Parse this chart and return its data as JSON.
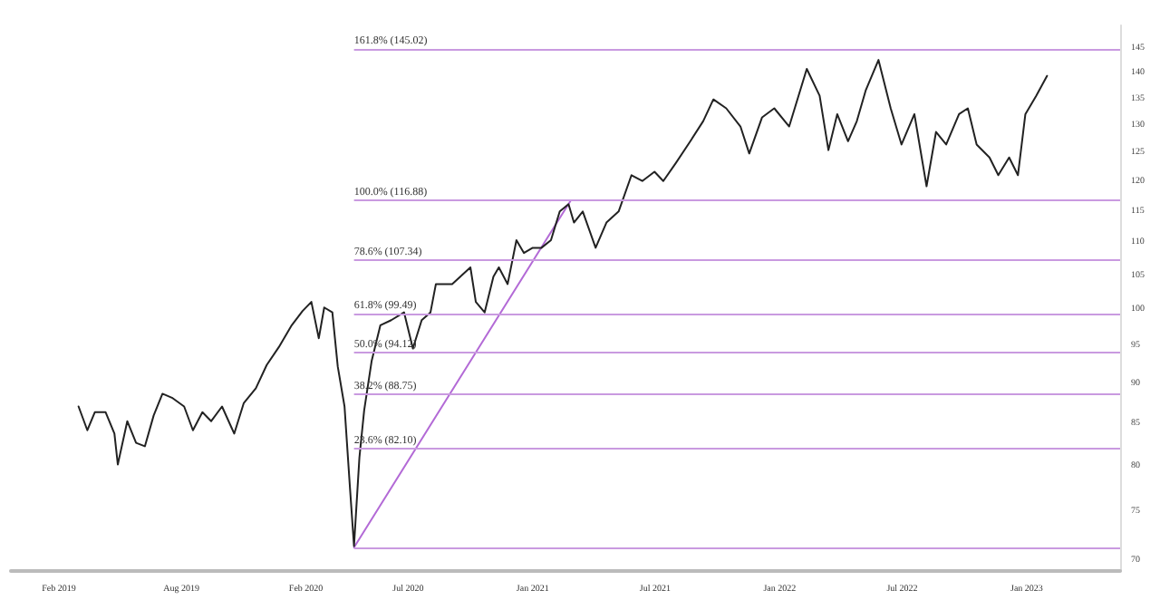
{
  "chart_data": {
    "type": "line",
    "marker": "none",
    "line_style": "solid",
    "grid": false,
    "log": "y",
    "xlim": [
      "2018-11-22",
      "2023-05-19"
    ],
    "xticks": [
      {
        "value": "2019-02-01",
        "label": "Feb 2019"
      },
      {
        "value": "2019-08-01",
        "label": "Aug 2019"
      },
      {
        "value": "2020-02-01",
        "label": "Feb 2020"
      },
      {
        "value": "2020-07-01",
        "label": "Jul 2020"
      },
      {
        "value": "2021-01-01",
        "label": "Jan 2021"
      },
      {
        "value": "2021-07-01",
        "label": "Jul 2021"
      },
      {
        "value": "2022-01-01",
        "label": "Jan 2022"
      },
      {
        "value": "2022-07-01",
        "label": "Jul 2022"
      },
      {
        "value": "2023-01-01",
        "label": "Jan 2023"
      }
    ],
    "ylim": [
      69,
      150
    ],
    "yticks": [
      70,
      75,
      80,
      85,
      90,
      95,
      100,
      105,
      110,
      115,
      120,
      125,
      130,
      135,
      140,
      145
    ],
    "series": [
      {
        "color": "#222222",
        "x": [
          "2019-03-02",
          "2019-03-15",
          "2019-03-26",
          "2019-04-11",
          "2019-04-24",
          "2019-04-29",
          "2019-05-13",
          "2019-05-26",
          "2019-06-08",
          "2019-06-21",
          "2019-07-04",
          "2019-07-18",
          "2019-08-05",
          "2019-08-18",
          "2019-09-01",
          "2019-09-14",
          "2019-09-30",
          "2019-10-18",
          "2019-11-01",
          "2019-11-19",
          "2019-12-05",
          "2019-12-23",
          "2020-01-11",
          "2020-01-27",
          "2020-02-09",
          "2020-02-20",
          "2020-02-28",
          "2020-03-11",
          "2020-03-19",
          "2020-03-29",
          "2020-04-06",
          "2020-04-12",
          "2020-04-20",
          "2020-04-27",
          "2020-05-08",
          "2020-05-21",
          "2020-06-06",
          "2020-06-25",
          "2020-07-08",
          "2020-07-21",
          "2020-08-03",
          "2020-08-11",
          "2020-09-04",
          "2020-10-01",
          "2020-10-09",
          "2020-10-22",
          "2020-11-04",
          "2020-11-12",
          "2020-11-25",
          "2020-12-08",
          "2020-12-19",
          "2021-01-01",
          "2021-01-14",
          "2021-01-28",
          "2021-02-10",
          "2021-02-23",
          "2021-03-03",
          "2021-03-16",
          "2021-04-04",
          "2021-04-20",
          "2021-05-08",
          "2021-05-27",
          "2021-06-12",
          "2021-06-30",
          "2021-07-13",
          "2021-08-01",
          "2021-08-22",
          "2021-09-10",
          "2021-09-25",
          "2021-10-14",
          "2021-11-04",
          "2021-11-17",
          "2021-12-06",
          "2021-12-24",
          "2022-01-15",
          "2022-02-10",
          "2022-03-01",
          "2022-03-14",
          "2022-03-27",
          "2022-04-12",
          "2022-04-25",
          "2022-05-08",
          "2022-05-27",
          "2022-06-14",
          "2022-06-30",
          "2022-07-19",
          "2022-08-06",
          "2022-08-20",
          "2022-09-04",
          "2022-09-23",
          "2022-10-06",
          "2022-10-19",
          "2022-11-07",
          "2022-11-20",
          "2022-12-06",
          "2022-12-19",
          "2022-12-30",
          "2023-01-15",
          "2023-01-31"
        ],
        "values": [
          87.2,
          84.3,
          86.5,
          86.5,
          83.9,
          80.3,
          85.4,
          82.8,
          82.4,
          86.1,
          88.8,
          88.3,
          87.2,
          84.3,
          86.5,
          85.4,
          87.2,
          83.9,
          87.6,
          89.5,
          92.5,
          94.9,
          97.9,
          99.9,
          101.2,
          96.1,
          100.4,
          99.7,
          92.3,
          87.2,
          77.7,
          71.5,
          81.1,
          86.7,
          93.0,
          97.9,
          98.6,
          99.7,
          94.7,
          98.6,
          99.7,
          103.8,
          103.8,
          106.3,
          101.2,
          99.7,
          104.9,
          106.3,
          103.8,
          110.5,
          108.5,
          109.3,
          109.3,
          110.5,
          115.1,
          116.3,
          113.3,
          115.1,
          109.3,
          113.3,
          115.1,
          121.2,
          120.2,
          121.8,
          120.2,
          123.4,
          127.2,
          130.9,
          135.0,
          133.3,
          129.9,
          125.0,
          131.6,
          133.3,
          129.9,
          141.0,
          135.7,
          125.6,
          132.2,
          127.2,
          130.9,
          136.7,
          142.8,
          133.3,
          126.6,
          132.2,
          119.3,
          128.9,
          126.6,
          132.2,
          133.3,
          126.6,
          124.3,
          121.2,
          124.3,
          121.2,
          132.2,
          135.7,
          139.6
        ]
      },
      {
        "type": "line",
        "color": "#b36ad6",
        "x": [
          "2020-04-12",
          "2021-02-26"
        ],
        "values": [
          71.35,
          116.88
        ]
      }
    ],
    "ref_lines": [
      {
        "axis": "y",
        "value": 145.02,
        "label": "161.8% (145.02)",
        "color": "#c99ae0"
      },
      {
        "axis": "y",
        "value": 116.88,
        "label": "100.0% (116.88)",
        "color": "#c99ae0"
      },
      {
        "axis": "y",
        "value": 107.34,
        "label": "78.6% (107.34)",
        "color": "#c99ae0"
      },
      {
        "axis": "y",
        "value": 99.49,
        "label": "61.8% (99.49)",
        "color": "#c99ae0"
      },
      {
        "axis": "y",
        "value": 94.12,
        "label": "50.0% (94.12)",
        "color": "#c99ae0"
      },
      {
        "axis": "y",
        "value": 88.75,
        "label": "38.2% (88.75)",
        "color": "#c99ae0"
      },
      {
        "axis": "y",
        "value": 82.1,
        "label": "23.6% (82.10)",
        "color": "#c99ae0"
      },
      {
        "axis": "y",
        "value": 71.35,
        "label": null,
        "color": "#c99ae0"
      }
    ]
  }
}
